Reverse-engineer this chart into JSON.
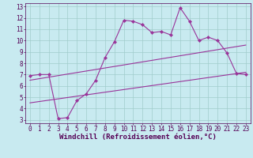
{
  "xlabel": "Windchill (Refroidissement éolien,°C)",
  "bg_color": "#c8eaf0",
  "line_color": "#993399",
  "grid_color": "#a0cccc",
  "xlim": [
    -0.5,
    23.5
  ],
  "ylim": [
    2.7,
    13.3
  ],
  "xticks": [
    0,
    1,
    2,
    3,
    4,
    5,
    6,
    7,
    8,
    9,
    10,
    11,
    12,
    13,
    14,
    15,
    16,
    17,
    18,
    19,
    20,
    21,
    22,
    23
  ],
  "yticks": [
    3,
    4,
    5,
    6,
    7,
    8,
    9,
    10,
    11,
    12,
    13
  ],
  "curve1_x": [
    0,
    1,
    2,
    3,
    4,
    5,
    6,
    7,
    8,
    9,
    10,
    11,
    12,
    13,
    14,
    15,
    16,
    17,
    18,
    19,
    20,
    21,
    22,
    23
  ],
  "curve1_y": [
    6.9,
    7.0,
    7.0,
    3.1,
    3.2,
    4.7,
    5.3,
    6.5,
    8.5,
    9.9,
    11.8,
    11.7,
    11.4,
    10.7,
    10.8,
    10.5,
    12.9,
    11.7,
    10.0,
    10.3,
    10.0,
    8.9,
    7.1,
    7.0
  ],
  "line1_x": [
    0,
    23
  ],
  "line1_y": [
    6.5,
    9.6
  ],
  "line2_x": [
    0,
    23
  ],
  "line2_y": [
    4.5,
    7.2
  ],
  "tick_fontsize": 5.5,
  "xlabel_fontsize": 6.5
}
